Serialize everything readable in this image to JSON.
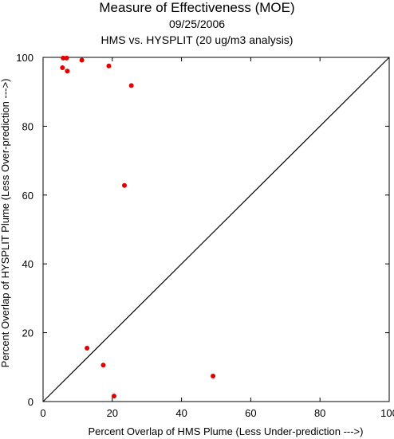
{
  "chart_data": {
    "type": "scatter",
    "title": "Measure of Effectiveness (MOE)",
    "subtitle": "09/25/2006",
    "subtitle2": "HMS vs. HYSPLIT  (20 ug/m3 analysis)",
    "xlabel": "Percent Overlap of HMS Plume (Less Under-prediction --->)",
    "ylabel": "Percent Overlap of HYSPLIT Plume (Less Over-prediction --->)",
    "xlim": [
      0,
      100
    ],
    "ylim": [
      0,
      100
    ],
    "xticks": [
      "0",
      "20",
      "40",
      "60",
      "80",
      "100"
    ],
    "yticks": [
      "0",
      "20",
      "40",
      "60",
      "80",
      "100"
    ],
    "grid": false,
    "reference_line": {
      "x": [
        0,
        100
      ],
      "y": [
        0,
        100
      ]
    },
    "point_color": "#e00000",
    "series": [
      {
        "points": [
          {
            "x": 5.8,
            "y": 99.8
          },
          {
            "x": 6.8,
            "y": 99.8
          },
          {
            "x": 5.6,
            "y": 97.0
          },
          {
            "x": 7.0,
            "y": 96.0
          },
          {
            "x": 11.2,
            "y": 99.2
          },
          {
            "x": 19.0,
            "y": 97.5
          },
          {
            "x": 25.5,
            "y": 91.8
          },
          {
            "x": 23.5,
            "y": 62.8
          },
          {
            "x": 12.7,
            "y": 15.5
          },
          {
            "x": 17.4,
            "y": 10.6
          },
          {
            "x": 20.5,
            "y": 1.6
          },
          {
            "x": 49.1,
            "y": 7.4
          }
        ]
      }
    ]
  }
}
